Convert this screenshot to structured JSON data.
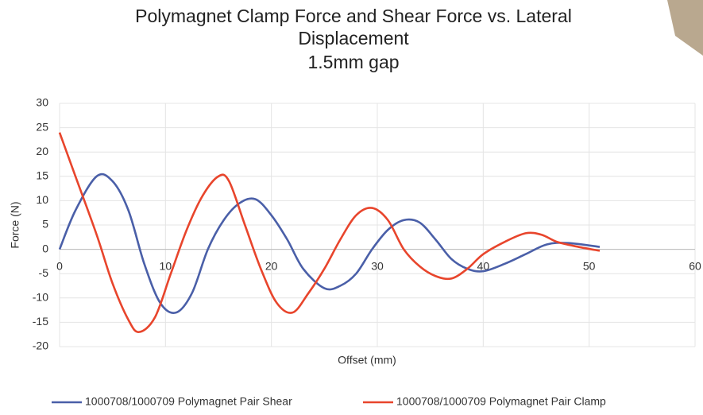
{
  "chart_data": {
    "type": "line",
    "title": [
      "Polymagnet Clamp Force and Shear Force vs. Lateral",
      "Displacement",
      "1.5mm gap"
    ],
    "x_label": "Offset (mm)",
    "y_label": "Force (N)",
    "xlim": [
      0,
      60
    ],
    "xticks": [
      0,
      10,
      20,
      30,
      40,
      50,
      60
    ],
    "ylim": [
      -20,
      30
    ],
    "yticks": [
      -20,
      -15,
      -10,
      -5,
      0,
      5,
      10,
      15,
      20,
      25,
      30
    ],
    "grid": true,
    "legend": "bottom",
    "series": [
      {
        "name": "1000708/1000709 Polymagnet Pair Shear",
        "color": "#4a5fa8",
        "x": [
          0,
          1.5,
          3.5,
          5,
          6.5,
          8,
          9.5,
          11,
          12.5,
          14,
          15.5,
          17,
          18.5,
          20,
          21.5,
          23,
          25,
          26.5,
          28,
          29.5,
          31,
          32.5,
          34,
          35.5,
          37,
          38.5,
          40,
          42,
          44,
          46,
          48,
          51
        ],
        "values": [
          0,
          8,
          15,
          14,
          8,
          -3,
          -11,
          -13,
          -9,
          0,
          6,
          9.5,
          10.3,
          7,
          2,
          -4,
          -8,
          -7.5,
          -5,
          0,
          4,
          6,
          5.5,
          2,
          -2,
          -4,
          -4.5,
          -3,
          -1,
          1,
          1.3,
          0.5
        ]
      },
      {
        "name": "1000708/1000709 Polymagnet Pair Clamp",
        "color": "#e8452c",
        "x": [
          0,
          1.5,
          3.5,
          5,
          6.5,
          7.5,
          9,
          10.5,
          12,
          13.5,
          15,
          16,
          17.5,
          19,
          20.5,
          22,
          23.5,
          25,
          26.5,
          28,
          29.5,
          31,
          32.5,
          34,
          35.5,
          37,
          38.5,
          40,
          42,
          44,
          45.5,
          47,
          49,
          51
        ],
        "values": [
          24,
          15,
          3,
          -7,
          -14.5,
          -17,
          -14,
          -5,
          4,
          11,
          15,
          14,
          5,
          -4,
          -11,
          -13,
          -9,
          -4,
          2,
          7,
          8.5,
          6,
          0,
          -3.5,
          -5.5,
          -6,
          -4,
          -1,
          1.5,
          3.3,
          3,
          1.5,
          0.5,
          -0.3
        ]
      }
    ]
  }
}
